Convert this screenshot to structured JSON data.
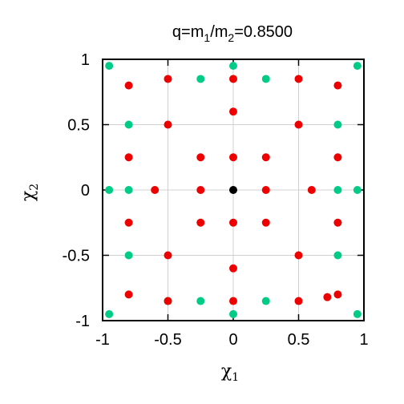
{
  "chart_data": {
    "type": "scatter",
    "title": {
      "q": "q=m",
      "sub1": "1",
      "slash": "/m",
      "sub2": "2",
      "rest": "=0.8500"
    },
    "xlabel": {
      "sym": "χ",
      "sub": "1"
    },
    "ylabel": {
      "sym": "χ",
      "sub": "2"
    },
    "xlim": [
      -1,
      1
    ],
    "ylim": [
      -1,
      1
    ],
    "xticks": [
      "-1",
      "-0.5",
      "0",
      "0.5",
      "1"
    ],
    "xtick_values": [
      -1,
      -0.5,
      0,
      0.5,
      1
    ],
    "yticks": [
      "-1",
      "-0.5",
      "0",
      "0.5",
      "1"
    ],
    "ytick_values": [
      -1,
      -0.5,
      0,
      0.5,
      1
    ],
    "grid": true,
    "colors": {
      "green": "#00cc88",
      "red": "#ee0000",
      "black": "#000000",
      "grid": "#d0d0d0"
    },
    "series": [
      {
        "color": "green",
        "points": [
          [
            -0.95,
            0.95
          ],
          [
            0,
            0.95
          ],
          [
            0.95,
            0.95
          ],
          [
            -0.25,
            0.85
          ],
          [
            0.25,
            0.85
          ],
          [
            -0.8,
            0.5
          ],
          [
            0.8,
            0.5
          ],
          [
            -0.95,
            0
          ],
          [
            -0.8,
            0
          ],
          [
            0.8,
            0
          ],
          [
            0.95,
            0
          ],
          [
            -0.8,
            -0.5
          ],
          [
            0.8,
            -0.5
          ],
          [
            -0.5,
            -0.85
          ],
          [
            -0.25,
            -0.85
          ],
          [
            0.25,
            -0.85
          ],
          [
            -0.95,
            -0.95
          ],
          [
            0,
            -0.95
          ],
          [
            0.95,
            -0.95
          ]
        ]
      },
      {
        "color": "red",
        "points": [
          [
            -0.5,
            0.85
          ],
          [
            0,
            0.85
          ],
          [
            0.5,
            0.85
          ],
          [
            -0.8,
            0.8
          ],
          [
            0.8,
            0.8
          ],
          [
            0,
            0.6
          ],
          [
            -0.5,
            0.5
          ],
          [
            0.5,
            0.5
          ],
          [
            -0.8,
            0.25
          ],
          [
            -0.25,
            0.25
          ],
          [
            0,
            0.25
          ],
          [
            0.25,
            0.25
          ],
          [
            0.8,
            0.25
          ],
          [
            -0.6,
            0
          ],
          [
            -0.25,
            0
          ],
          [
            0.25,
            0
          ],
          [
            0.6,
            0
          ],
          [
            -0.8,
            -0.25
          ],
          [
            -0.25,
            -0.25
          ],
          [
            0,
            -0.25
          ],
          [
            0.25,
            -0.25
          ],
          [
            0.8,
            -0.25
          ],
          [
            -0.5,
            -0.5
          ],
          [
            0.5,
            -0.5
          ],
          [
            0,
            -0.6
          ],
          [
            -0.8,
            -0.8
          ],
          [
            0.8,
            -0.8
          ],
          [
            0.72,
            -0.82
          ],
          [
            -0.5,
            -0.85
          ],
          [
            0,
            -0.85
          ],
          [
            0.5,
            -0.85
          ]
        ]
      },
      {
        "color": "black",
        "points": [
          [
            0,
            0
          ]
        ]
      }
    ]
  }
}
